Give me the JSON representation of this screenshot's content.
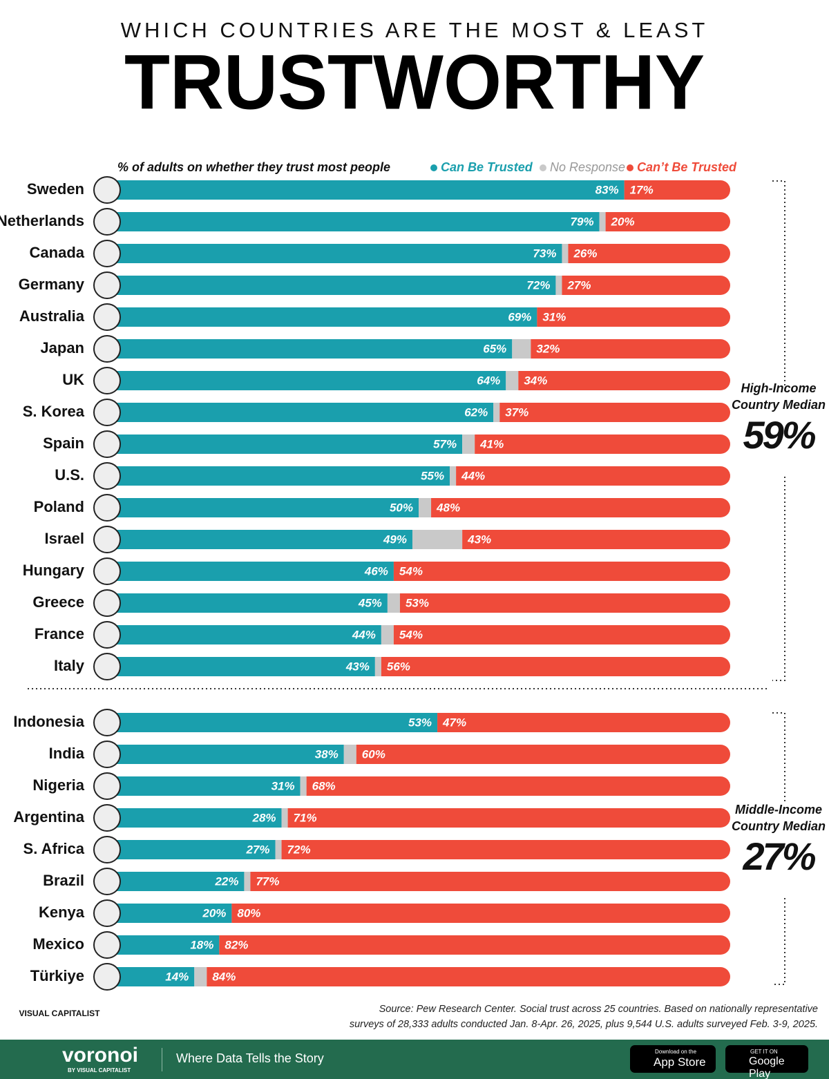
{
  "header": {
    "kicker": "WHICH COUNTRIES ARE THE MOST & LEAST",
    "title": "TRUSTWORTHY"
  },
  "chart_data": [
    {
      "type": "stacked-bar",
      "orientation": "horizontal",
      "title": "% of adults on whether they trust most people",
      "categories": [
        "Sweden",
        "Netherlands",
        "Canada",
        "Germany",
        "Australia",
        "Japan",
        "UK",
        "S. Korea",
        "Spain",
        "U.S.",
        "Poland",
        "Israel",
        "Hungary",
        "Greece",
        "France",
        "Italy"
      ],
      "xlim": [
        0,
        100
      ],
      "series": [
        {
          "name": "Can Be Trusted",
          "color": "#1a9fad",
          "values": [
            83,
            79,
            73,
            72,
            69,
            65,
            64,
            62,
            57,
            55,
            50,
            49,
            46,
            45,
            44,
            43
          ],
          "value_labels": [
            "83%",
            "79%",
            "73%",
            "72%",
            "69%",
            "65%",
            "64%",
            "62%",
            "57%",
            "55%",
            "50%",
            "49%",
            "46%",
            "45%",
            "44%",
            "43%"
          ]
        },
        {
          "name": "No Response",
          "color": "#c9c9c9",
          "values": [
            0,
            1,
            1,
            1,
            0,
            3,
            2,
            1,
            2,
            1,
            2,
            8,
            0,
            2,
            2,
            1
          ]
        },
        {
          "name": "Can’t Be Trusted",
          "color": "#ef4b3a",
          "values": [
            17,
            20,
            26,
            27,
            31,
            32,
            34,
            37,
            41,
            44,
            48,
            43,
            54,
            53,
            54,
            56
          ],
          "value_labels": [
            "17%",
            "20%",
            "26%",
            "27%",
            "31%",
            "32%",
            "34%",
            "37%",
            "41%",
            "44%",
            "48%",
            "43%",
            "54%",
            "53%",
            "54%",
            "56%"
          ]
        }
      ],
      "annotation": {
        "label": "High-Income Country Median",
        "value": 59,
        "value_label": "59%"
      }
    },
    {
      "type": "stacked-bar",
      "orientation": "horizontal",
      "categories": [
        "Indonesia",
        "India",
        "Nigeria",
        "Argentina",
        "S. Africa",
        "Brazil",
        "Kenya",
        "Mexico",
        "Türkiye"
      ],
      "xlim": [
        0,
        100
      ],
      "series": [
        {
          "color": "#1a9fad",
          "values": [
            53,
            38,
            31,
            28,
            27,
            22,
            20,
            18,
            14
          ],
          "value_labels": [
            "53%",
            "38%",
            "31%",
            "28%",
            "27%",
            "22%",
            "20%",
            "18%",
            "14%"
          ]
        },
        {
          "color": "#c9c9c9",
          "values": [
            0,
            2,
            1,
            1,
            1,
            1,
            0,
            0,
            2
          ]
        },
        {
          "color": "#ef4b3a",
          "values": [
            47,
            60,
            68,
            71,
            72,
            77,
            80,
            82,
            84
          ],
          "value_labels": [
            "47%",
            "60%",
            "68%",
            "71%",
            "72%",
            "77%",
            "80%",
            "82%",
            "84%"
          ]
        }
      ],
      "annotation": {
        "label": "Middle-Income Country Median",
        "value": 27,
        "value_label": "27%"
      }
    }
  ],
  "footer": {
    "source": [
      "Source: Pew Research Center. Social trust across 25 countries. Based on nationally representative",
      "surveys of 28,333 adults conducted Jan. 8-Apr. 26, 2025, plus 9,544 U.S. adults surveyed Feb. 3-9, 2025."
    ],
    "publisher": "VISUAL CAPITALIST",
    "brand": "voronoi",
    "brand_sub": "BY VISUAL CAPITALIST",
    "tagline": "Where Data Tells the Story",
    "app_store": [
      "Download on the",
      "App Store"
    ],
    "google_play": [
      "GET IT ON",
      "Google Play"
    ]
  }
}
